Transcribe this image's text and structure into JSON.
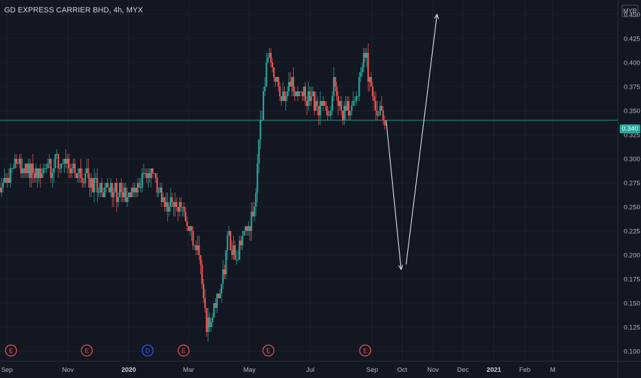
{
  "header": {
    "symbol_title": "GD EXPRESS CARRIER BHD, 4h, MYX",
    "currency": "MYR"
  },
  "last_price": {
    "label": "0.340",
    "value": 0.34,
    "color": "#26a69a"
  },
  "colors": {
    "background": "#131722",
    "grid": "#1e222d",
    "up": "#26a69a",
    "down": "#ef5350",
    "axis_text": "#b2b5be",
    "event_earnings": "#ef5350",
    "event_dividend": "#2962ff",
    "annotation_arrow": "#e8e8e8"
  },
  "events": [
    {
      "label": "E",
      "date": "2019-09-05",
      "type": "earnings"
    },
    {
      "label": "E",
      "date": "2019-11-20",
      "type": "earnings"
    },
    {
      "label": "D",
      "date": "2020-01-20",
      "type": "dividend"
    },
    {
      "label": "E",
      "date": "2020-02-25",
      "type": "earnings"
    },
    {
      "label": "E",
      "date": "2020-05-20",
      "type": "earnings"
    },
    {
      "label": "E",
      "date": "2020-08-25",
      "type": "earnings"
    }
  ],
  "chart_data": {
    "type": "candlestick",
    "title": "GD EXPRESS CARRIER BHD, 4h, MYX",
    "x_range": [
      "2019-08-25",
      "2021-05-05"
    ],
    "ylim": [
      0.09,
      0.465
    ],
    "y_ticks": [
      0.1,
      0.125,
      0.15,
      0.175,
      0.2,
      0.225,
      0.25,
      0.275,
      0.3,
      0.325,
      0.35,
      0.375,
      0.4,
      0.425,
      0.45
    ],
    "y_tick_labels": [
      "0.100",
      "0.125",
      "0.150",
      "0.175",
      "0.200",
      "0.225",
      "0.250",
      "0.275",
      "0.300",
      "0.325",
      "0.350",
      "0.375",
      "0.400",
      "0.425",
      "0.450"
    ],
    "x_ticks": [
      {
        "date": "2019-09-01",
        "label": "Sep",
        "bold": false
      },
      {
        "date": "2019-11-01",
        "label": "Nov",
        "bold": false
      },
      {
        "date": "2020-01-01",
        "label": "2020",
        "bold": true
      },
      {
        "date": "2020-03-01",
        "label": "Mar",
        "bold": false
      },
      {
        "date": "2020-05-01",
        "label": "May",
        "bold": false
      },
      {
        "date": "2020-07-01",
        "label": "Jul",
        "bold": false
      },
      {
        "date": "2020-09-01",
        "label": "Sep",
        "bold": false
      },
      {
        "date": "2020-10-01",
        "label": "Oct",
        "bold": false
      },
      {
        "date": "2020-11-01",
        "label": "Nov",
        "bold": false
      },
      {
        "date": "2020-12-01",
        "label": "Dec",
        "bold": false
      },
      {
        "date": "2021-01-01",
        "label": "2021",
        "bold": true
      },
      {
        "date": "2021-02-01",
        "label": "Feb",
        "bold": false
      },
      {
        "date": "2021-03-01",
        "label": "M",
        "bold": false
      }
    ],
    "price_path": [
      [
        "2019-08-25",
        0.272
      ],
      [
        "2019-09-03",
        0.285
      ],
      [
        "2019-09-08",
        0.298
      ],
      [
        "2019-09-20",
        0.287
      ],
      [
        "2019-10-05",
        0.284
      ],
      [
        "2019-10-20",
        0.293
      ],
      [
        "2019-11-05",
        0.29
      ],
      [
        "2019-11-20",
        0.28
      ],
      [
        "2019-12-05",
        0.268
      ],
      [
        "2019-12-20",
        0.264
      ],
      [
        "2020-01-05",
        0.265
      ],
      [
        "2020-01-12",
        0.272
      ],
      [
        "2020-01-18",
        0.285
      ],
      [
        "2020-01-25",
        0.285
      ],
      [
        "2020-02-02",
        0.265
      ],
      [
        "2020-02-10",
        0.255
      ],
      [
        "2020-02-20",
        0.252
      ],
      [
        "2020-02-28",
        0.235
      ],
      [
        "2020-03-08",
        0.205
      ],
      [
        "2020-03-15",
        0.175
      ],
      [
        "2020-03-19",
        0.123
      ],
      [
        "2020-03-25",
        0.14
      ],
      [
        "2020-04-02",
        0.165
      ],
      [
        "2020-04-10",
        0.215
      ],
      [
        "2020-04-17",
        0.2
      ],
      [
        "2020-04-25",
        0.215
      ],
      [
        "2020-05-03",
        0.235
      ],
      [
        "2020-05-08",
        0.275
      ],
      [
        "2020-05-13",
        0.345
      ],
      [
        "2020-05-20",
        0.41
      ],
      [
        "2020-05-27",
        0.385
      ],
      [
        "2020-06-03",
        0.365
      ],
      [
        "2020-06-12",
        0.375
      ],
      [
        "2020-06-20",
        0.37
      ],
      [
        "2020-07-01",
        0.365
      ],
      [
        "2020-07-10",
        0.358
      ],
      [
        "2020-07-20",
        0.345
      ],
      [
        "2020-07-25",
        0.385
      ],
      [
        "2020-08-01",
        0.345
      ],
      [
        "2020-08-10",
        0.355
      ],
      [
        "2020-08-18",
        0.37
      ],
      [
        "2020-08-25",
        0.415
      ],
      [
        "2020-08-30",
        0.37
      ],
      [
        "2020-09-05",
        0.36
      ],
      [
        "2020-09-12",
        0.335
      ],
      [
        "2020-09-15",
        0.34
      ]
    ],
    "last_price": 0.34,
    "annotation_path": [
      [
        "2020-09-15",
        0.34
      ],
      [
        "2020-09-30",
        0.185
      ],
      [
        "2020-10-05",
        0.19
      ],
      [
        "2020-11-05",
        0.45
      ]
    ]
  }
}
